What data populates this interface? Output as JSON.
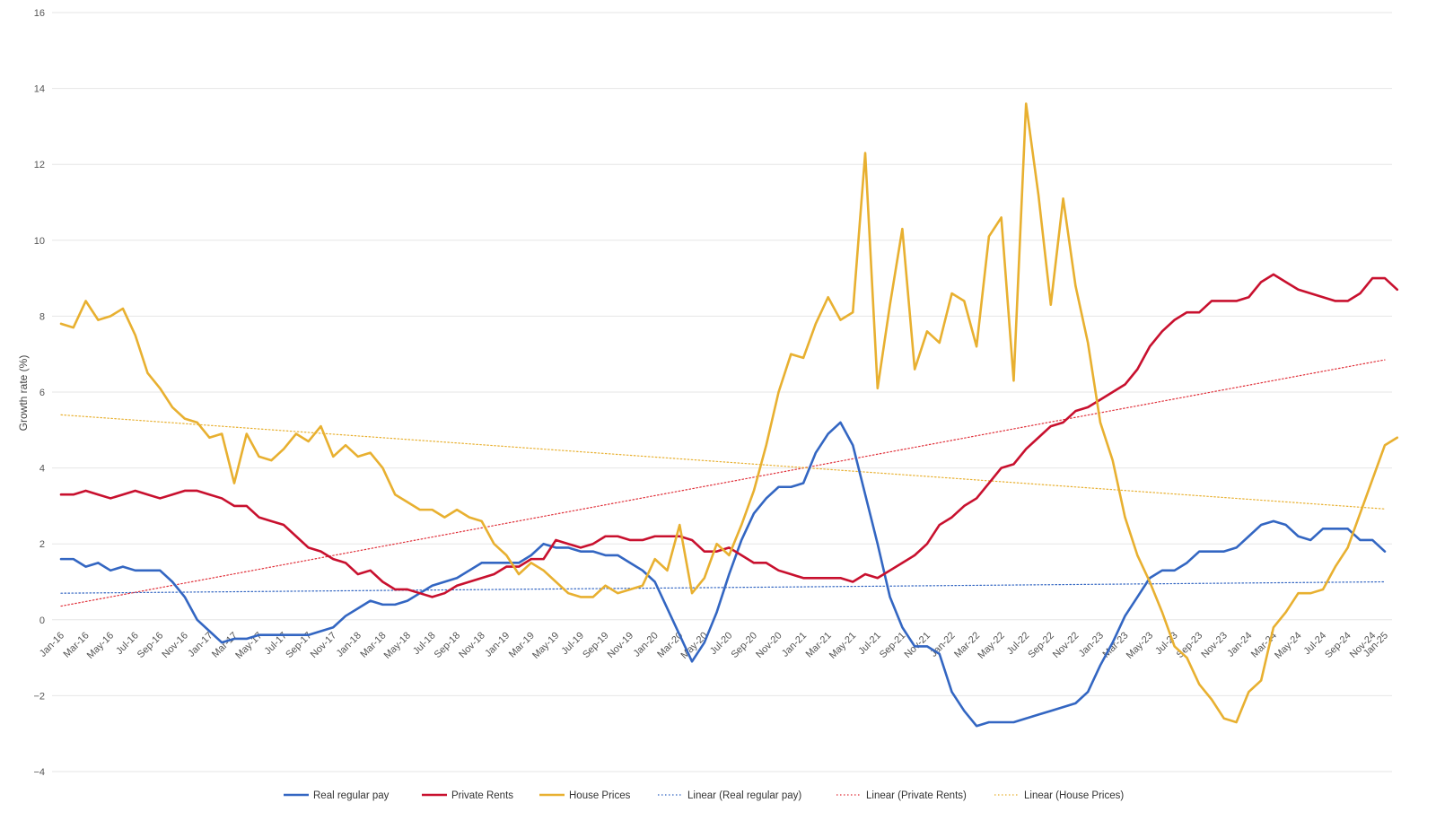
{
  "chart_data": {
    "type": "line",
    "ylabel": "Growth rate (%)",
    "ylim": [
      -4,
      16
    ],
    "yticks": [
      -4,
      -2,
      0,
      2,
      4,
      6,
      8,
      10,
      12,
      14,
      16
    ],
    "ytick_labels": [
      "−4",
      "−2",
      "0",
      "2",
      "4",
      "6",
      "8",
      "10",
      "12",
      "14",
      "16"
    ],
    "grid": true,
    "x_start": "Jan-16",
    "x_tick_labels": [
      "Jan-16",
      "Mar-16",
      "May-16",
      "Jul-16",
      "Sep-16",
      "Nov-16",
      "Jan-17",
      "Mar-17",
      "May-17",
      "Jul-17",
      "Sep-17",
      "Nov-17",
      "Jan-18",
      "Mar-18",
      "May-18",
      "Jul-18",
      "Sep-18",
      "Nov-18",
      "Jan-19",
      "Mar-19",
      "May-19",
      "Jul-19",
      "Sep-19",
      "Nov-19",
      "Jan-20",
      "Mar-20",
      "May-20",
      "Jul-20",
      "Sep-20",
      "Nov-20",
      "Jan-21",
      "Mar-21",
      "May-21",
      "Jul-21",
      "Sep-21",
      "Nov-21",
      "Jan-22",
      "Mar-22",
      "May-22",
      "Jul-22",
      "Sep-22",
      "Nov-22",
      "Jan-23",
      "Mar-23",
      "May-23",
      "Jul-23",
      "Sep-23",
      "Nov-23",
      "Jan-24",
      "Mar-24",
      "May-24",
      "Jul-24",
      "Sep-24",
      "Nov-24",
      "Jan-25"
    ],
    "legend_position": "bottom",
    "series": [
      {
        "name": "Real regular pay",
        "color": "#3366c2",
        "style": "solid",
        "values": [
          1.6,
          1.6,
          1.4,
          1.5,
          1.3,
          1.4,
          1.3,
          1.3,
          1.3,
          1.0,
          0.6,
          0.0,
          -0.3,
          -0.6,
          -0.5,
          -0.5,
          -0.4,
          -0.4,
          -0.4,
          -0.4,
          -0.4,
          -0.3,
          -0.2,
          0.1,
          0.3,
          0.5,
          0.4,
          0.4,
          0.5,
          0.7,
          0.9,
          1.0,
          1.1,
          1.3,
          1.5,
          1.5,
          1.5,
          1.5,
          1.7,
          2.0,
          1.9,
          1.9,
          1.8,
          1.8,
          1.7,
          1.7,
          1.5,
          1.3,
          1.0,
          0.3,
          -0.4,
          -1.1,
          -0.6,
          0.2,
          1.2,
          2.1,
          2.8,
          3.2,
          3.5,
          3.5,
          3.6,
          4.4,
          4.9,
          5.2,
          4.6,
          3.3,
          2.0,
          0.6,
          -0.2,
          -0.7,
          -0.7,
          -0.9,
          -1.9,
          -2.4,
          -2.8,
          -2.7,
          -2.7,
          -2.7,
          -2.6,
          -2.5,
          -2.4,
          -2.3,
          -2.2,
          -1.9,
          -1.2,
          -0.6,
          0.1,
          0.6,
          1.1,
          1.3,
          1.3,
          1.5,
          1.8,
          1.8,
          1.8,
          1.9,
          2.2,
          2.5,
          2.6,
          2.5,
          2.2,
          2.1,
          2.4,
          2.4,
          2.4,
          2.1,
          2.1,
          1.8
        ]
      },
      {
        "name": "Private Rents",
        "color": "#c8102e",
        "style": "solid",
        "values": [
          3.3,
          3.3,
          3.4,
          3.3,
          3.2,
          3.3,
          3.4,
          3.3,
          3.2,
          3.3,
          3.4,
          3.4,
          3.3,
          3.2,
          3.0,
          3.0,
          2.7,
          2.6,
          2.5,
          2.2,
          1.9,
          1.8,
          1.6,
          1.5,
          1.2,
          1.3,
          1.0,
          0.8,
          0.8,
          0.7,
          0.6,
          0.7,
          0.9,
          1.0,
          1.1,
          1.2,
          1.4,
          1.4,
          1.6,
          1.6,
          2.1,
          2.0,
          1.9,
          2.0,
          2.2,
          2.2,
          2.1,
          2.1,
          2.2,
          2.2,
          2.2,
          2.1,
          1.8,
          1.8,
          1.9,
          1.7,
          1.5,
          1.5,
          1.3,
          1.2,
          1.1,
          1.1,
          1.1,
          1.1,
          1.0,
          1.2,
          1.1,
          1.3,
          1.5,
          1.7,
          2.0,
          2.5,
          2.7,
          3.0,
          3.2,
          3.6,
          4.0,
          4.1,
          4.5,
          4.8,
          5.1,
          5.2,
          5.5,
          5.6,
          5.8,
          6.0,
          6.2,
          6.6,
          7.2,
          7.6,
          7.9,
          8.1,
          8.1,
          8.4,
          8.4,
          8.4,
          8.5,
          8.9,
          9.1,
          8.9,
          8.7,
          8.6,
          8.5,
          8.4,
          8.4,
          8.6,
          9.0,
          9.0,
          8.7
        ]
      },
      {
        "name": "House Prices",
        "color": "#e8b030",
        "style": "solid",
        "values": [
          7.8,
          7.7,
          8.4,
          7.9,
          8.0,
          8.2,
          7.5,
          6.5,
          6.1,
          5.6,
          5.3,
          5.2,
          4.8,
          4.9,
          3.6,
          4.9,
          4.3,
          4.2,
          4.5,
          4.9,
          4.7,
          5.1,
          4.3,
          4.6,
          4.3,
          4.4,
          4.0,
          3.3,
          3.1,
          2.9,
          2.9,
          2.7,
          2.9,
          2.7,
          2.6,
          2.0,
          1.7,
          1.2,
          1.5,
          1.3,
          1.0,
          0.7,
          0.6,
          0.6,
          0.9,
          0.7,
          0.8,
          0.9,
          1.6,
          1.3,
          2.5,
          0.7,
          1.1,
          2.0,
          1.7,
          2.5,
          3.4,
          4.6,
          6.0,
          7.0,
          6.9,
          7.8,
          8.5,
          7.9,
          8.1,
          12.3,
          6.1,
          8.3,
          10.3,
          6.6,
          7.6,
          7.3,
          8.6,
          8.4,
          7.2,
          10.1,
          10.6,
          6.3,
          13.6,
          11.2,
          8.3,
          11.1,
          8.8,
          7.3,
          5.2,
          4.2,
          2.7,
          1.7,
          1.0,
          0.2,
          -0.7,
          -1.0,
          -1.7,
          -2.1,
          -2.6,
          -2.7,
          -1.9,
          -1.6,
          -0.2,
          0.2,
          0.7,
          0.7,
          0.8,
          1.4,
          1.9,
          2.8,
          3.7,
          4.6,
          4.8
        ]
      },
      {
        "name": "Linear (Real regular pay)",
        "color": "#3366c2",
        "style": "dotted",
        "values": [
          0.7,
          1.0
        ]
      },
      {
        "name": "Linear (Private Rents)",
        "color": "#e0303a",
        "style": "dotted",
        "values": [
          0.36,
          6.85
        ]
      },
      {
        "name": "Linear (House Prices)",
        "color": "#e8b030",
        "style": "dotted",
        "values": [
          5.4,
          2.92
        ]
      }
    ]
  }
}
